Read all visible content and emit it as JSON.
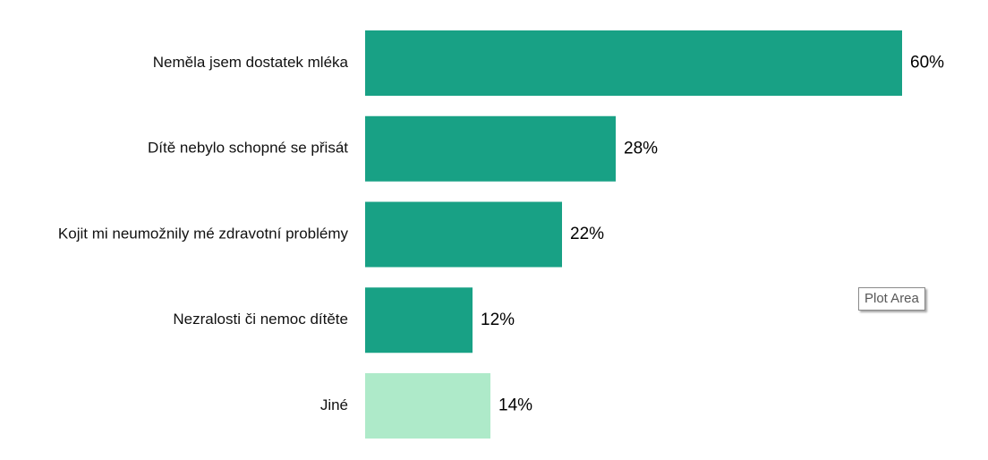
{
  "chart_data": {
    "type": "bar",
    "orientation": "horizontal",
    "categories": [
      "Neměla jsem dostatek mléka",
      "Dítě nebylo schopné se přisát",
      "Kojit mi neumožnily mé zdravotní problémy",
      "Nezralosti či nemoc dítěte",
      "Jiné"
    ],
    "values": [
      60,
      28,
      22,
      12,
      14
    ],
    "data_labels": [
      "60%",
      "28%",
      "22%",
      "12%",
      "14%"
    ],
    "bar_colors": [
      "#18a185",
      "#18a185",
      "#18a185",
      "#18a185",
      "#aeeac9"
    ],
    "xlim": [
      0,
      60
    ],
    "grid": false,
    "legend": "none"
  },
  "tooltip": {
    "text": "Plot Area"
  }
}
